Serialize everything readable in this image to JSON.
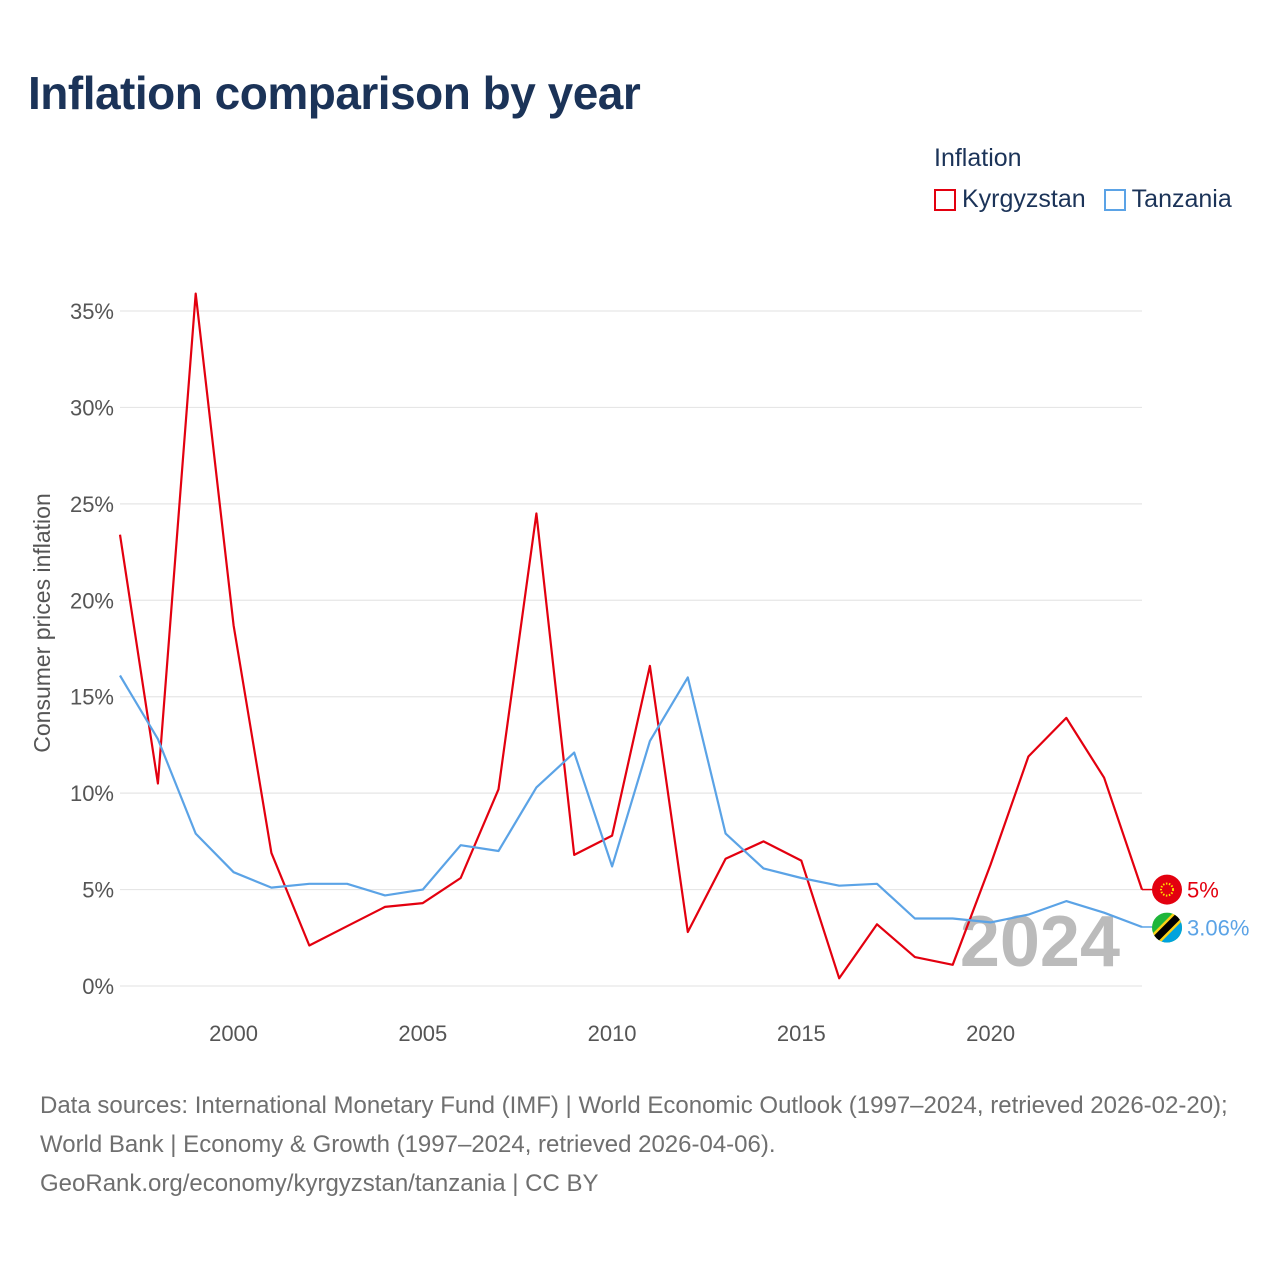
{
  "title": "Inflation comparison by year",
  "legend": {
    "title": "Inflation",
    "items": [
      {
        "name": "Kyrgyzstan",
        "color": "#e3000f"
      },
      {
        "name": "Tanzania",
        "color": "#5ba3e6"
      }
    ]
  },
  "year_label": "2024",
  "source": {
    "line1": "Data sources: International Monetary Fund (IMF) | World Economic Outlook (1997–2024, retrieved 2026-02-20); World Bank | Economy & Growth (1997–2024, retrieved 2026-04-06).",
    "line2": "GeoRank.org/economy/kyrgyzstan/tanzania | CC BY"
  },
  "chart_data": {
    "type": "line",
    "title": "Inflation comparison by year",
    "xlabel": "",
    "ylabel": "Consumer prices inflation",
    "x": [
      1997,
      1998,
      1999,
      2000,
      2001,
      2002,
      2003,
      2004,
      2005,
      2006,
      2007,
      2008,
      2009,
      2010,
      2011,
      2012,
      2013,
      2014,
      2015,
      2016,
      2017,
      2018,
      2019,
      2020,
      2021,
      2022,
      2023,
      2024
    ],
    "xlim": [
      1997,
      2024
    ],
    "ylim": [
      0,
      35
    ],
    "xticks": [
      "2000",
      "2005",
      "2010",
      "2015",
      "2020"
    ],
    "yticks": [
      "0%",
      "5%",
      "10%",
      "15%",
      "20%",
      "25%",
      "30%",
      "35%"
    ],
    "grid": true,
    "legend_position": "top-right",
    "series": [
      {
        "name": "Kyrgyzstan",
        "color": "#e3000f",
        "end_label": "5%",
        "values": [
          23.4,
          10.5,
          35.9,
          18.7,
          6.9,
          2.1,
          3.1,
          4.1,
          4.3,
          5.6,
          10.2,
          24.5,
          6.8,
          7.8,
          16.6,
          2.8,
          6.6,
          7.5,
          6.5,
          0.4,
          3.2,
          1.5,
          1.1,
          6.3,
          11.9,
          13.9,
          10.8,
          5.0
        ]
      },
      {
        "name": "Tanzania",
        "color": "#5ba3e6",
        "end_label": "3.06%",
        "values": [
          16.1,
          12.8,
          7.9,
          5.9,
          5.1,
          5.3,
          5.3,
          4.7,
          5.0,
          7.3,
          7.0,
          10.3,
          12.1,
          6.2,
          12.7,
          16.0,
          7.9,
          6.1,
          5.6,
          5.2,
          5.3,
          3.5,
          3.5,
          3.3,
          3.7,
          4.4,
          3.8,
          3.06
        ]
      }
    ]
  }
}
